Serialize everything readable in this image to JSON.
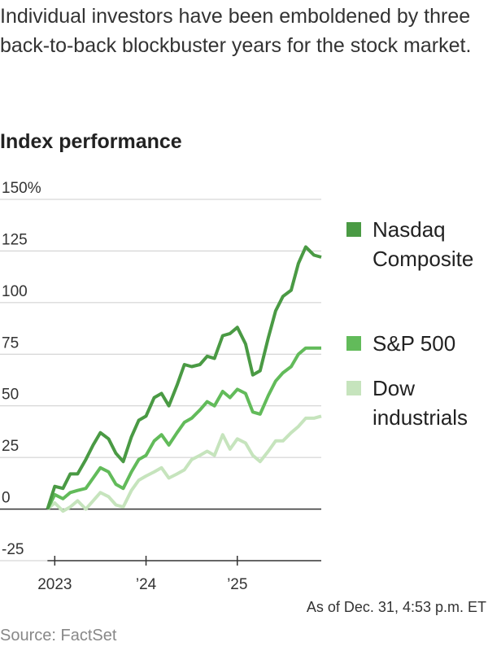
{
  "chart_data": {
    "type": "line",
    "subtitle": "Individual investors have been emboldened by three back-to-back blockbuster years for the stock market.",
    "title": "Index performance",
    "x": [
      2022.92,
      2023.0,
      2023.09,
      2023.17,
      2023.25,
      2023.34,
      2023.42,
      2023.5,
      2023.59,
      2023.67,
      2023.75,
      2023.84,
      2023.92,
      2024.0,
      2024.09,
      2024.17,
      2024.25,
      2024.34,
      2024.42,
      2024.5,
      2024.59,
      2024.67,
      2024.75,
      2024.84,
      2024.92,
      2025.0,
      2025.09,
      2025.17,
      2025.25,
      2025.34,
      2025.42,
      2025.5,
      2025.59,
      2025.67,
      2025.75,
      2025.84,
      2025.92
    ],
    "series": [
      {
        "name": "Nasdaq Composite",
        "color": "#4a9a44",
        "values": [
          0,
          11,
          10,
          17,
          17,
          24,
          31,
          37,
          34,
          27,
          23,
          35,
          43,
          45,
          54,
          56,
          50,
          60,
          70,
          69,
          70,
          74,
          73,
          84,
          85,
          88,
          80,
          65,
          67,
          83,
          96,
          103,
          106,
          119,
          127,
          123,
          122
        ]
      },
      {
        "name": "S&P 500",
        "color": "#62bb5a",
        "values": [
          0,
          7,
          5,
          8,
          9,
          10,
          15,
          20,
          18,
          12,
          10,
          18,
          24,
          26,
          33,
          36,
          31,
          37,
          42,
          44,
          48,
          52,
          50,
          57,
          54,
          58,
          56,
          47,
          46,
          55,
          62,
          66,
          69,
          75,
          78,
          78,
          78
        ]
      },
      {
        "name": "Dow industrials",
        "color": "#c6e4bd",
        "values": [
          0,
          3,
          -1,
          1,
          4,
          0,
          4,
          8,
          6,
          2,
          1,
          9,
          14,
          16,
          18,
          20,
          15,
          17,
          19,
          24,
          26,
          28,
          26,
          36,
          29,
          34,
          32,
          26,
          23,
          28,
          33,
          33,
          37,
          40,
          44,
          44,
          45
        ]
      }
    ],
    "xlim": [
      2022.4,
      2025.92
    ],
    "xticks": [
      {
        "value": 2023,
        "label": "2023"
      },
      {
        "value": 2024,
        "label": "’24"
      },
      {
        "value": 2025,
        "label": "’25"
      }
    ],
    "ylim": [
      -25,
      150
    ],
    "yticks": [
      -25,
      0,
      25,
      50,
      75,
      {
        "value": 150,
        "label": "150%"
      },
      100,
      125
    ],
    "grid": true,
    "legend": "right",
    "note": "As of Dec. 31, 4:53 p.m. ET",
    "source": "Source: FactSet"
  }
}
